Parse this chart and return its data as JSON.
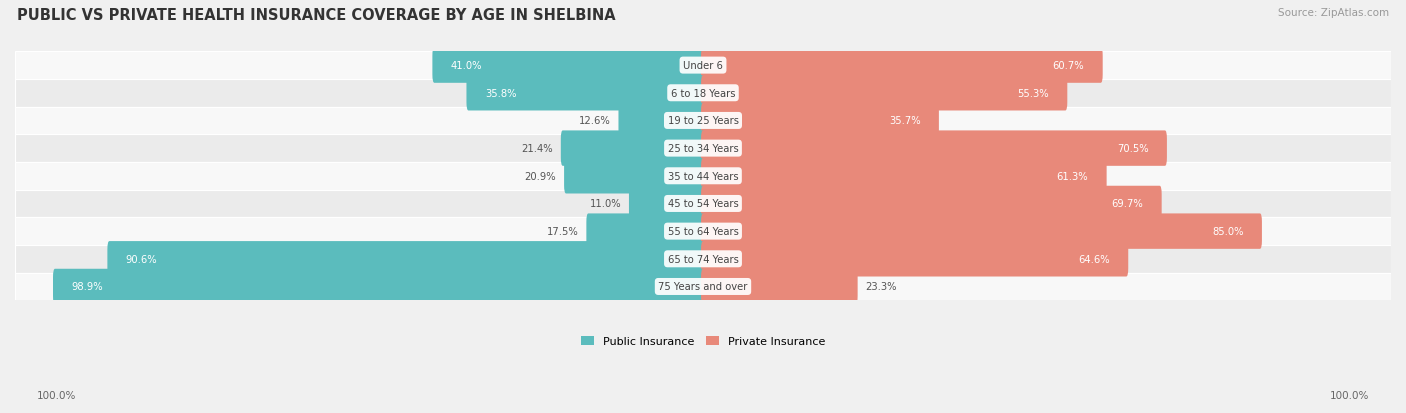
{
  "title": "PUBLIC VS PRIVATE HEALTH INSURANCE COVERAGE BY AGE IN SHELBINA",
  "source": "Source: ZipAtlas.com",
  "categories": [
    "Under 6",
    "6 to 18 Years",
    "19 to 25 Years",
    "25 to 34 Years",
    "35 to 44 Years",
    "45 to 54 Years",
    "55 to 64 Years",
    "65 to 74 Years",
    "75 Years and over"
  ],
  "public_values": [
    41.0,
    35.8,
    12.6,
    21.4,
    20.9,
    11.0,
    17.5,
    90.6,
    98.9
  ],
  "private_values": [
    60.7,
    55.3,
    35.7,
    70.5,
    61.3,
    69.7,
    85.0,
    64.6,
    23.3
  ],
  "public_color": "#5bbcbd",
  "private_color": "#e8897a",
  "bg_color": "#f0f0f0",
  "row_bg_colors": [
    "#f8f8f8",
    "#ebebeb"
  ],
  "axis_label_left": "100.0%",
  "axis_label_right": "100.0%",
  "title_fontsize": 10.5,
  "source_fontsize": 7.5,
  "bar_height": 0.68,
  "legend_label_public": "Public Insurance",
  "legend_label_private": "Private Insurance"
}
